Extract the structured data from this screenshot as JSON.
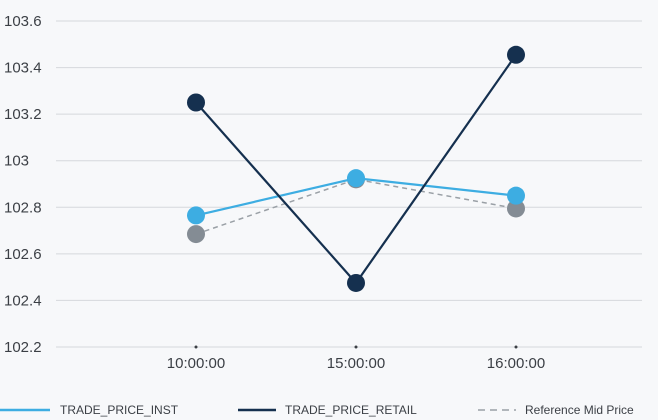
{
  "chart_data": {
    "type": "line",
    "title": "",
    "xlabel": "",
    "ylabel": "",
    "categories": [
      "10:00:00",
      "15:00:00",
      "16:00:00"
    ],
    "ylim": [
      102.2,
      103.6
    ],
    "yticks": [
      "102.2",
      "102.4",
      "102.6",
      "102.8",
      "103",
      "103.2",
      "103.4",
      "103.6"
    ],
    "grid": true,
    "legend_position": "bottom",
    "series": [
      {
        "name": "TRADE_PRICE_INST",
        "values": [
          102.765,
          102.925,
          102.85
        ],
        "color": "#3dade2",
        "dashed": false,
        "marker_color": "#3dade2"
      },
      {
        "name": "TRADE_PRICE_RETAIL",
        "values": [
          103.25,
          102.475,
          103.455
        ],
        "color": "#15304f",
        "dashed": false,
        "marker_color": "#15304f"
      },
      {
        "name": "Reference Mid Price",
        "values": [
          102.685,
          102.92,
          102.795
        ],
        "color": "#9aa0a6",
        "dashed": true,
        "marker_color": "#848c94"
      }
    ]
  }
}
